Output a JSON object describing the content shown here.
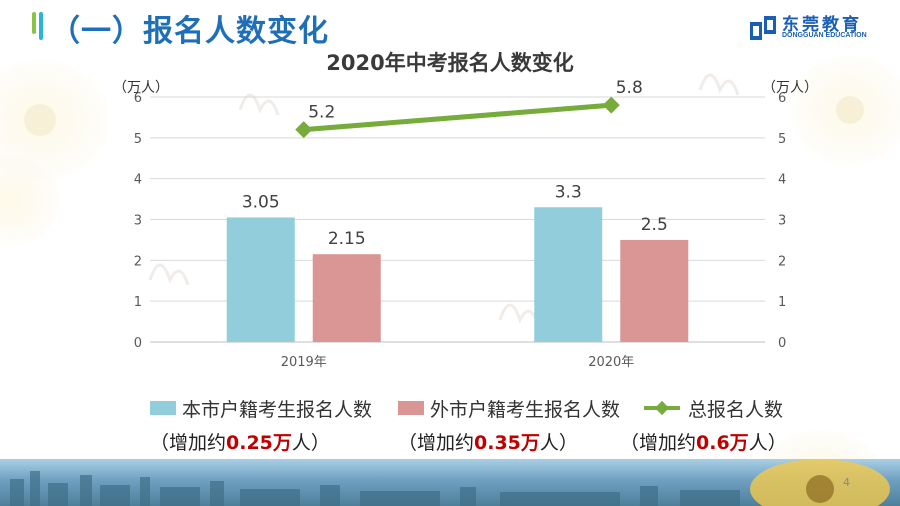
{
  "slide": {
    "section_title": "（一）报名人数变化",
    "logo_name": "东莞教育",
    "logo_sub": "DONGGUAN EDUCATION",
    "page_number": "4"
  },
  "colors": {
    "local": "#92cddc",
    "nonlocal": "#d99694",
    "total": "#77ab3b",
    "title_blue": "#1f6fb8",
    "highlight_red": "#c00000"
  },
  "legend": {
    "local": "本市户籍考生报名人数",
    "nonlocal": "外市户籍考生报名人数",
    "total": "总报名人数"
  },
  "notes": [
    {
      "prefix": "（增加约",
      "value": "0.25万",
      "suffix": "人）"
    },
    {
      "prefix": "（增加约",
      "value": "0.35万",
      "suffix": "人）"
    },
    {
      "prefix": "（增加约",
      "value": "0.6万",
      "suffix": "人）"
    }
  ],
  "chart_data": {
    "type": "bar",
    "title": "2020年中考报名人数变化",
    "categories": [
      "2019年",
      "2020年"
    ],
    "y_left_label": "（万人）",
    "y_right_label": "（万人）",
    "ylim": [
      0,
      6
    ],
    "yticks": [
      "0",
      "1",
      "2",
      "3",
      "4",
      "5",
      "6"
    ],
    "grid": true,
    "series": [
      {
        "name": "本市户籍考生报名人数",
        "kind": "bar",
        "values": [
          3.05,
          3.3
        ],
        "labels": [
          "3.05",
          "3.3"
        ]
      },
      {
        "name": "外市户籍考生报名人数",
        "kind": "bar",
        "values": [
          2.15,
          2.5
        ],
        "labels": [
          "2.15",
          "2.5"
        ]
      },
      {
        "name": "总报名人数",
        "kind": "line",
        "values": [
          5.2,
          5.8
        ],
        "labels": [
          "5.2",
          "5.8"
        ]
      }
    ]
  }
}
